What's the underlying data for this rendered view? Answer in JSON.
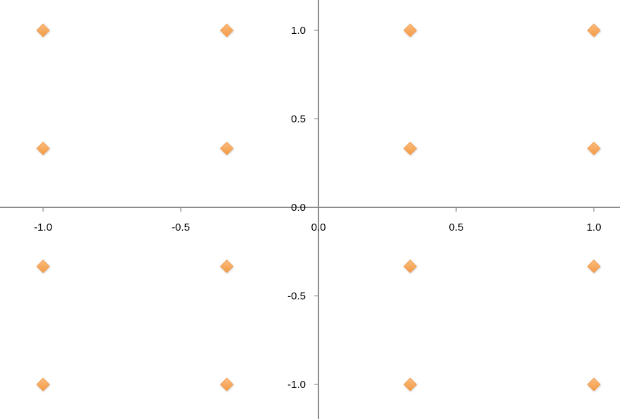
{
  "chart_data": {
    "type": "scatter",
    "title": "",
    "xlabel": "",
    "ylabel": "",
    "xlim": [
      -1.2,
      1.1
    ],
    "ylim": [
      -1.2,
      1.2
    ],
    "grid": false,
    "legend": "none",
    "x_ticks": [
      -1.0,
      -0.5,
      0.0,
      0.5,
      1.0
    ],
    "y_ticks": [
      -1.0,
      -0.5,
      0.0,
      0.5,
      1.0
    ],
    "x_tick_labels": [
      "-1.0",
      "-0.5",
      "0.0",
      "0.5",
      "1.0"
    ],
    "y_tick_labels": [
      "-1.0",
      "-0.5",
      "0.0",
      "0.5",
      "1.0"
    ],
    "marker": "diamond",
    "marker_color": "#f7a65c",
    "axis_color": "#8c8c8c",
    "series": [
      {
        "points": [
          {
            "x": -1.0,
            "y": 1.0
          },
          {
            "x": -0.333,
            "y": 1.0
          },
          {
            "x": 0.333,
            "y": 1.0
          },
          {
            "x": 1.0,
            "y": 1.0
          },
          {
            "x": -1.0,
            "y": 0.333
          },
          {
            "x": -0.333,
            "y": 0.333
          },
          {
            "x": 0.333,
            "y": 0.333
          },
          {
            "x": 1.0,
            "y": 0.333
          },
          {
            "x": -1.0,
            "y": -0.333
          },
          {
            "x": -0.333,
            "y": -0.333
          },
          {
            "x": 0.333,
            "y": -0.333
          },
          {
            "x": 1.0,
            "y": -0.333
          },
          {
            "x": -1.0,
            "y": -1.0
          },
          {
            "x": -0.333,
            "y": -1.0
          },
          {
            "x": 0.333,
            "y": -1.0
          },
          {
            "x": 1.0,
            "y": -1.0
          }
        ]
      }
    ]
  }
}
